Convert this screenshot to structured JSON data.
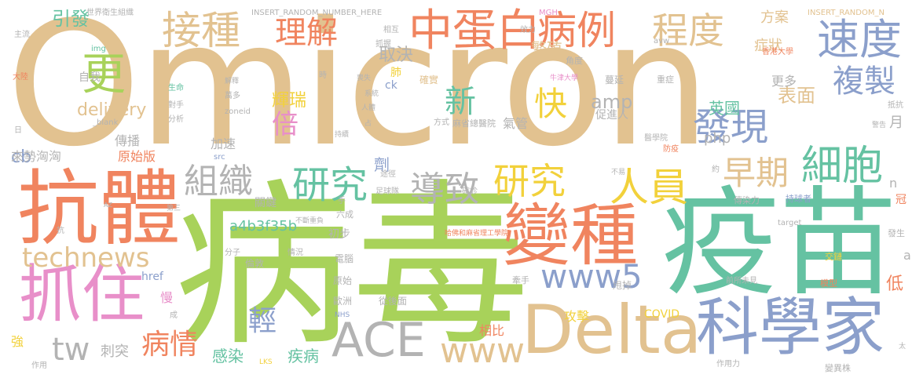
{
  "palette": {
    "tan": "#e2c290",
    "coral": "#f0845f",
    "green": "#a8d25a",
    "teal": "#65c2a2",
    "pink": "#e88fc9",
    "periwinkle": "#8b9fcb",
    "gray": "#b3b3b3",
    "yellow": "#f2d13b"
  },
  "words": {
    "omicron": "Omicron",
    "bingdu": "病毒",
    "yimiao": "疫苗",
    "bianzhong": "變種",
    "kangti": "抗體",
    "zhuazhu": "抓住",
    "kexuejia": "科學家",
    "delta": "Delta",
    "ace": "ACE",
    "www": "www",
    "www5": "www5",
    "technews": "technews",
    "tw": "tw",
    "jiezhong": "接種",
    "zhongdanbai": "中蛋白",
    "bingli": "病例",
    "chengdu": "程度",
    "sudu": "速度",
    "fuzhi": "複製",
    "lijie": "理解",
    "geng": "更",
    "faxian": "發現",
    "xibao": "細胞",
    "zaoqi": "早期",
    "renyuan": "人員",
    "yanjiu1": "研究",
    "yanjiu2": "研究",
    "daozhi": "導致",
    "zuzhi": "組織",
    "bei": "倍",
    "xin": "新",
    "kuai": "快",
    "huirui": "輝瑞",
    "qu_jue": "取決",
    "fei": "肺",
    "fanzhi": "繁殖",
    "biaomian": "表面",
    "yingguo": "英國",
    "amp": "amp",
    "delivery": "delivery",
    "php": "php",
    "cb": "cb",
    "bingqing": "病情",
    "qing": "輕",
    "ganran": "感染",
    "jibing": "疾病",
    "ci_tu": "刺突",
    "jiban": "劑",
    "gongji": "攻擊",
    "xiangbi": "相比",
    "covid": "COVID",
    "yinfa": "引發",
    "zhengzhuang": "症狀",
    "fangan": "方案",
    "gengduo": "更多",
    "yue": "月",
    "di": "低",
    "chuanbo": "傳播",
    "yuanshiban": "原始版",
    "laishixiongxiong": "來勢洶洶",
    "jiasu": "加速",
    "qiguan": "氣管",
    "cujinren": "促進人",
    "a4b3f35b": "a4b3f35b",
    "guanjian": "關鍵",
    "chubu": "初步",
    "href": "href",
    "man": "慢",
    "qiang": "強",
    "zhuzhi": "主流",
    "ziwo": "自我",
    "img": "img",
    "blank": "_blank",
    "ck": "ck",
    "zoneid": "zoneid",
    "src": "src",
    "insert1": "INSERT_RANDOM_NUMBER_HERE",
    "insert2": "INSERT_RANDOM_N",
    "who": "世界衛生組織",
    "mgh": "MGH",
    "avw": "avw",
    "hku": "香港大學",
    "oxford": "牛津大學",
    "mayo": "麻省總醫院",
    "harvard": "哈佛和麻省理工學院",
    "target": "target",
    "lks": "LKS",
    "nhs": "NHS",
    "az": "AZ",
    "n": "n",
    "a": "a",
    "shifouzhuo": "確實",
    "manyan": "蔓延",
    "zhongzheng": "重症",
    "jiaodu": "角度",
    "xianghu": "相互",
    "shengyu": "生命",
    "chuanranli": "傳染力",
    "chixuzhe": "持球者",
    "biao": "表面",
    "qiantuo": "前所未見",
    "moxing": "模型",
    "zuoyongli": "作用力",
    "bianyizhu": "變異株",
    "jiaoqiao": "交鏈",
    "fasheng": "發生",
    "shuaiding": "甩掉",
    "qianshou": "牽手",
    "lundun": "倫敦",
    "diannao": "電腦",
    "yuanshi": "原始",
    "ouzhou": "歐洲",
    "congjimian": "從後面",
    "buduanchongfu": "不斷重負",
    "liucheng": "六成",
    "fenzi": "分子",
    "qingkuang": "情況",
    "zuqiudui": "足球隊",
    "tujing": "途徑",
    "tihuan": "確診",
    "jiangli": "降低",
    "duiqiu": "對手",
    "fenxi": "分析",
    "wanduo": "萬多",
    "jieshi": "解釋",
    "zhua": "抓握",
    "xitong": "系統",
    "renti": "人體",
    "chi": "持續",
    "zhan": "占",
    "fangshi": "方式",
    "zhongbao": "重爆",
    "xiaoli": "效力",
    "shi": "時",
    "shangshi": "喪失",
    "tisheng": "提升",
    "fanzui": "防疫",
    "yixueyuan": "醫學院",
    "yiyuan": "醫院",
    "bubi": "不易",
    "yue2": "約",
    "jingbao": "警告",
    "dikang": "抵抗",
    "gunqiu": "滾球",
    "shenhua": "深化",
    "zhidao": "指導",
    "xiaoshi": "消失",
    "ruo": "弱",
    "cheng": "成",
    "zuoyong": "作用",
    "ri": "日",
    "dalu": "大陸",
    "youzhong": "有種",
    "wushou": "無手",
    "biebing": "病性",
    "tianji": "天擊",
    "tuchu": "突出",
    "kou": "口",
    "guanzhu": "關注",
    "lifa": "理髮",
    "gongzuo": "工作",
    "chunhua": "純化",
    "shou": "手",
    "kang": "抗",
    "di3": "第三",
    "jiaodianqi": "交點器",
    "bianhuan": "變換",
    "guan": "冠",
    "tai": "太",
    "fang": "防衛者",
    "baiyu": "白玉",
    "lingdan": "靈丹"
  }
}
